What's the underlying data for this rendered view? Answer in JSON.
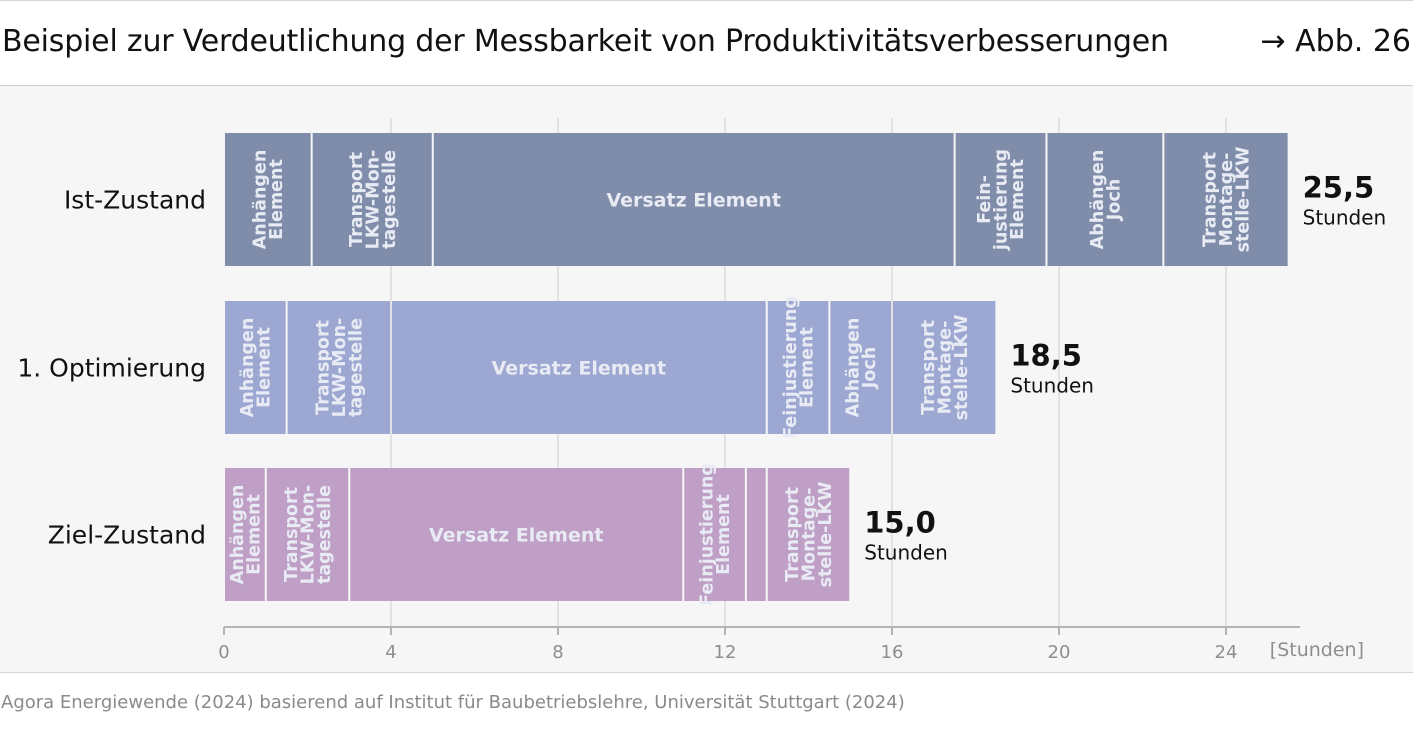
{
  "header": {
    "title": "Beispiel zur Verdeutlichung der Messbarkeit von Produktivitätsverbesserungen",
    "figure_ref": "→ Abb. 26"
  },
  "source": "Agora Energiewende (2024) basierend auf Institut für Baubetriebslehre, Universität Stuttgart (2024)",
  "colors": {
    "ist": "#7f8daa",
    "opt": "#9da8d2",
    "ziel": "#bf9fc6",
    "segment_text": "#e8ebf3",
    "grid": "#dcdcdc",
    "axis": "#b4b4b4"
  },
  "chart_data": {
    "type": "bar",
    "orientation": "horizontal-stacked",
    "xlabel": "[Stunden]",
    "xlim": [
      0,
      26
    ],
    "xticks": [
      0,
      4,
      8,
      12,
      16,
      20,
      24
    ],
    "grid": true,
    "rows": [
      {
        "name": "Ist-Zustand",
        "color_key": "ist",
        "total": "25,5",
        "unit": "Stunden",
        "segments": [
          {
            "label": "Anhängen\nElement",
            "start": 0,
            "end": 2.1,
            "rotated": true
          },
          {
            "label": "Transport\nLKW-Mon-\ntagestelle",
            "start": 2.1,
            "end": 5.0,
            "rotated": true
          },
          {
            "label": "Versatz Element",
            "start": 5.0,
            "end": 17.5,
            "rotated": false
          },
          {
            "label": "Fein-\njustierung\nElement",
            "start": 17.5,
            "end": 19.7,
            "rotated": true
          },
          {
            "label": "Abhängen\nJoch",
            "start": 19.7,
            "end": 22.5,
            "rotated": true
          },
          {
            "label": "Transport\nMontage-\nstelle-LKW",
            "start": 22.5,
            "end": 25.5,
            "rotated": true
          }
        ]
      },
      {
        "name": "1. Optimierung",
        "color_key": "opt",
        "total": "18,5",
        "unit": "Stunden",
        "segments": [
          {
            "label": "Anhängen\nElement",
            "start": 0,
            "end": 1.5,
            "rotated": true
          },
          {
            "label": "Transport\nLKW-Mon-\ntagestelle",
            "start": 1.5,
            "end": 4.0,
            "rotated": true
          },
          {
            "label": "Versatz Element",
            "start": 4.0,
            "end": 13.0,
            "rotated": false
          },
          {
            "label": "Feinjustierung\nElement",
            "start": 13.0,
            "end": 14.5,
            "rotated": true
          },
          {
            "label": "Abhängen\nJoch",
            "start": 14.5,
            "end": 16.0,
            "rotated": true
          },
          {
            "label": "Transport\nMontage-\nstelle-LKW",
            "start": 16.0,
            "end": 18.5,
            "rotated": true
          }
        ]
      },
      {
        "name": "Ziel-Zustand",
        "color_key": "ziel",
        "total": "15,0",
        "unit": "Stunden",
        "segments": [
          {
            "label": "Anhängen\nElement",
            "start": 0,
            "end": 1.0,
            "rotated": true
          },
          {
            "label": "Transport\nLKW-Mon-\ntagestelle",
            "start": 1.0,
            "end": 3.0,
            "rotated": true
          },
          {
            "label": "Versatz Element",
            "start": 3.0,
            "end": 11.0,
            "rotated": false
          },
          {
            "label": "Feinjustierung\nElement",
            "start": 11.0,
            "end": 12.5,
            "rotated": true
          },
          {
            "label": "",
            "start": 12.5,
            "end": 13.0,
            "rotated": true
          },
          {
            "label": "Transport\nMontage-\nstelle-LKW",
            "start": 13.0,
            "end": 15.0,
            "rotated": true
          }
        ]
      }
    ]
  }
}
